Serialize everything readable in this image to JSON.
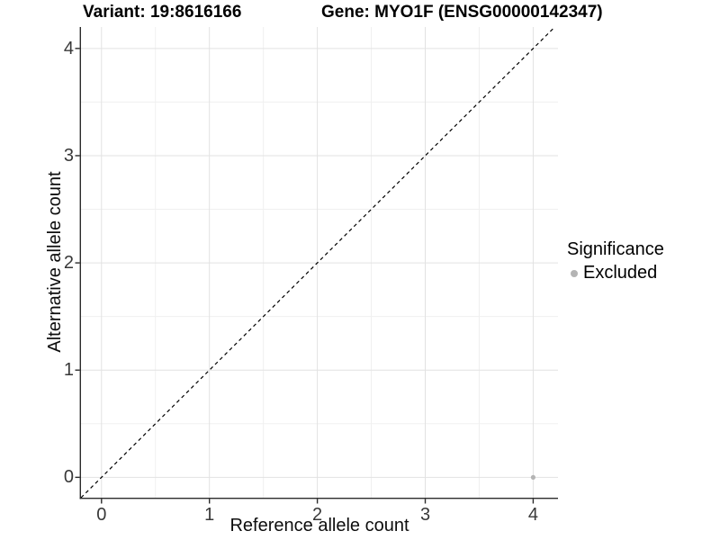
{
  "figure": {
    "title_left": "Variant: 19:8616166",
    "title_right": "Gene: MYO1F (ENSG00000142347)"
  },
  "chart_data": {
    "type": "scatter",
    "xlabel": "Reference allele count",
    "ylabel": "Alternative allele count",
    "xlim": [
      -0.19,
      4.23
    ],
    "ylim": [
      -0.19,
      4.2
    ],
    "x_ticks": [
      0,
      1,
      2,
      3,
      4
    ],
    "y_ticks": [
      0,
      1,
      2,
      3,
      4
    ],
    "x_minor_ticks": [
      0.5,
      1.5,
      2.5,
      3.5
    ],
    "y_minor_ticks": [
      0.5,
      1.5,
      2.5,
      3.5
    ],
    "grid": "major and minor gridlines, white panel background",
    "legend_position": "right",
    "series": [
      {
        "name": "Excluded",
        "color": "#b4b4b4",
        "marker": "circle",
        "points": [
          [
            4,
            0
          ]
        ]
      }
    ],
    "reference_line": {
      "style": "dashed",
      "color": "#000000",
      "slope": 1,
      "intercept": 0,
      "from": [
        -0.19,
        -0.19
      ],
      "to": [
        4.2,
        4.2
      ]
    }
  },
  "legend": {
    "title": "Significance",
    "items": [
      {
        "label": "Excluded",
        "color": "#b4b4b4"
      }
    ]
  },
  "colors": {
    "grid_major": "#e2e2e2",
    "grid_minor": "#f0f0f0",
    "axis_line": "#2b2b2b",
    "tick_text": "#383838"
  }
}
